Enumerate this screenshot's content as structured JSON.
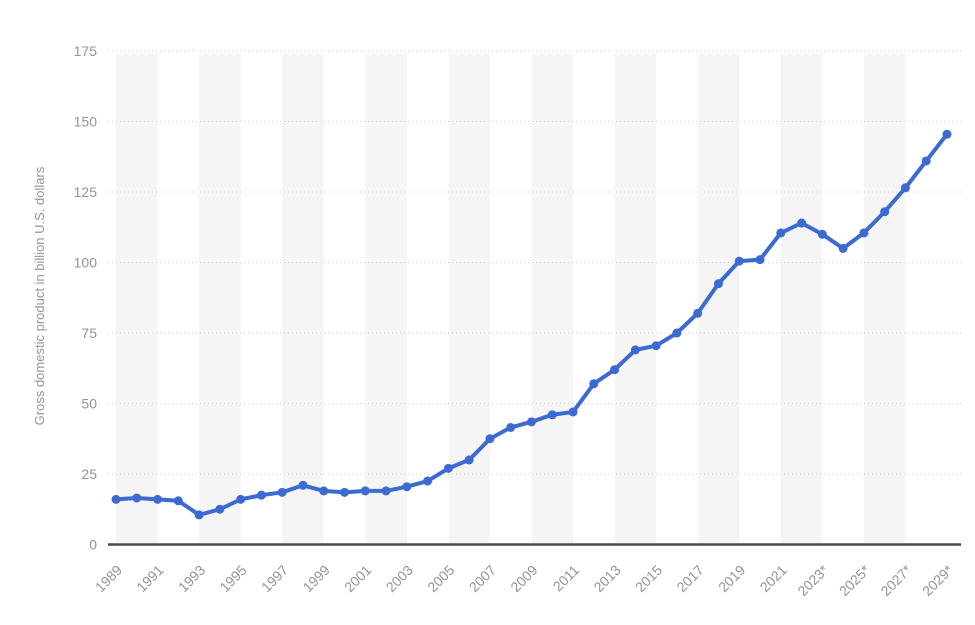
{
  "chart_data": {
    "type": "line",
    "title": "",
    "xlabel": "",
    "ylabel": "Gross domestic product in billion U.S. dollars",
    "x": [
      1989,
      1990,
      1991,
      1992,
      1993,
      1994,
      1995,
      1996,
      1997,
      1998,
      1999,
      2000,
      2001,
      2002,
      2003,
      2004,
      2005,
      2006,
      2007,
      2008,
      2009,
      2010,
      2011,
      2012,
      2013,
      2014,
      2015,
      2016,
      2017,
      2018,
      2019,
      2020,
      2021,
      2022,
      2023,
      2024,
      2025,
      2026,
      2027,
      2028,
      2029
    ],
    "series": [
      {
        "name": "Gross domestic product in billion U.S. dollars",
        "values": [
          16,
          16.5,
          16,
          15.5,
          10.5,
          12.5,
          16,
          17.5,
          18.5,
          21,
          19,
          18.5,
          19,
          19,
          20.5,
          22.5,
          27,
          30,
          37.5,
          41.5,
          43.5,
          46,
          47,
          57,
          62,
          69,
          70.5,
          75,
          82,
          92.5,
          100.5,
          101,
          110.5,
          114,
          110,
          105,
          110.5,
          118,
          126.5,
          136,
          145.5
        ]
      }
    ],
    "x_tick_labels": [
      "1989",
      "1991",
      "1993",
      "1995",
      "1997",
      "1999",
      "2001",
      "2003",
      "2005",
      "2007",
      "2009",
      "2011",
      "2013",
      "2015",
      "2017",
      "2019",
      "2021",
      "2023*",
      "2025*",
      "2027*",
      "2029*"
    ],
    "yticks": [
      0,
      25,
      50,
      75,
      100,
      125,
      150,
      175
    ],
    "ylim": [
      0,
      175
    ],
    "grid": "horizontal-dotted",
    "legend_position": "none",
    "marker": "circle",
    "colors": {
      "line": "#3b6ad2",
      "marker": "#3b6ad2",
      "band": "#f5f5f5",
      "gridline": "#cccccc",
      "axis_line": "#4a4a4a",
      "tick_text": "#949494"
    }
  }
}
